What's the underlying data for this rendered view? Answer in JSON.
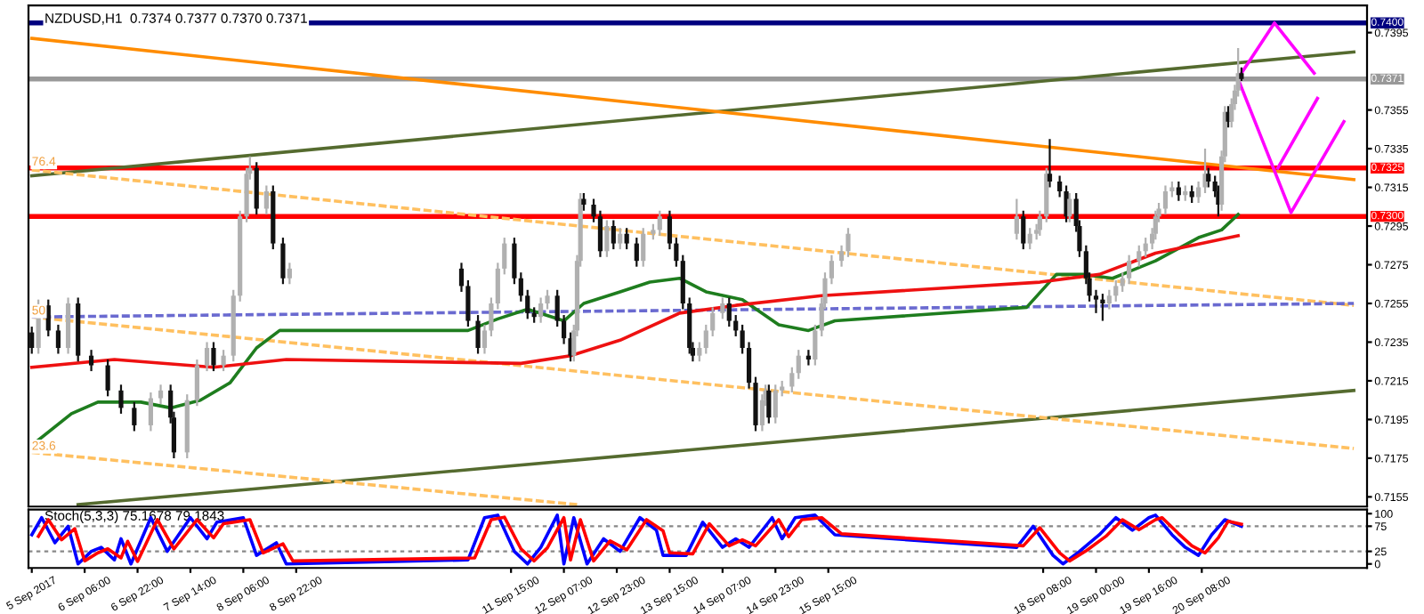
{
  "chart_data": [
    {
      "type": "candlestick",
      "title": "NZDUSD,H1  0.7374 0.7377 0.7370 0.7371",
      "x": [
        "2017-09-05T14:00",
        "2017-09-05T16:00",
        "2017-09-05T19:00",
        "2017-09-05T22:00",
        "2017-09-06T01:00",
        "2017-09-06T04:00",
        "2017-09-06T08:00",
        "2017-09-06T13:00",
        "2017-09-06T17:00",
        "2017-09-06T21:00",
        "2017-09-07T02:00",
        "2017-09-07T05:00",
        "2017-09-07T08:00",
        "2017-09-07T09:00",
        "2017-09-07T13:00",
        "2017-09-07T16:00",
        "2017-09-07T19:00",
        "2017-09-07T21:00",
        "2017-09-08T00:00",
        "2017-09-08T03:00",
        "2017-09-08T05:00",
        "2017-09-08T07:00",
        "2017-09-08T08:00",
        "2017-09-08T10:00",
        "2017-09-08T13:00",
        "2017-09-08T15:00",
        "2017-09-08T18:00",
        "2017-09-08T20:00",
        "2017-09-11T00:00",
        "2017-09-11T02:00",
        "2017-09-11T05:00",
        "2017-09-11T07:00",
        "2017-09-11T09:00",
        "2017-09-11T11:00",
        "2017-09-11T13:00",
        "2017-09-11T16:00",
        "2017-09-11T18:00",
        "2017-09-11T20:00",
        "2017-09-11T22:00",
        "2017-09-12T00:00",
        "2017-09-12T02:00",
        "2017-09-12T05:00",
        "2017-09-12T07:00",
        "2017-09-12T09:00",
        "2017-09-12T10:00",
        "2017-09-12T11:00",
        "2017-09-12T12:00",
        "2017-09-12T13:00",
        "2017-09-12T16:00",
        "2017-09-12T18:00",
        "2017-09-12T20:00",
        "2017-09-12T22:00",
        "2017-09-13T00:00",
        "2017-09-13T02:00",
        "2017-09-13T05:00",
        "2017-09-13T07:00",
        "2017-09-13T10:00",
        "2017-09-13T12:00",
        "2017-09-13T15:00",
        "2017-09-13T17:00",
        "2017-09-13T19:00",
        "2017-09-13T21:00",
        "2017-09-13T22:00",
        "2017-09-14T00:00",
        "2017-09-14T02:00",
        "2017-09-14T04:00",
        "2017-09-14T07:00",
        "2017-09-14T09:00",
        "2017-09-14T11:00",
        "2017-09-14T13:00",
        "2017-09-14T15:00",
        "2017-09-14T17:00",
        "2017-09-14T19:00",
        "2017-09-14T20:00",
        "2017-09-14T21:00",
        "2017-09-14T23:00",
        "2017-09-15T01:00",
        "2017-09-15T04:00",
        "2017-09-15T06:00",
        "2017-09-15T09:00",
        "2017-09-15T11:00",
        "2017-09-15T13:00",
        "2017-09-15T14:00",
        "2017-09-15T16:00",
        "2017-09-15T19:00",
        "2017-09-15T21:00",
        "2017-09-18T00:00",
        "2017-09-18T02:00",
        "2017-09-18T04:00",
        "2017-09-18T06:00",
        "2017-09-18T07:00",
        "2017-09-18T09:00",
        "2017-09-18T10:00",
        "2017-09-18T13:00",
        "2017-09-18T15:00",
        "2017-09-18T16:00",
        "2017-09-18T18:00",
        "2017-09-18T19:00",
        "2017-09-18T21:00",
        "2017-09-18T22:00",
        "2017-09-19T00:00",
        "2017-09-19T02:00",
        "2017-09-19T04:00",
        "2017-09-19T06:00",
        "2017-09-19T08:00",
        "2017-09-19T10:00",
        "2017-09-19T13:00",
        "2017-09-19T15:00",
        "2017-09-19T17:00",
        "2017-09-19T18:00",
        "2017-09-19T19:00",
        "2017-09-19T21:00",
        "2017-09-19T23:00",
        "2017-09-20T01:00",
        "2017-09-20T03:00",
        "2017-09-20T05:00",
        "2017-09-20T07:00",
        "2017-09-20T09:00",
        "2017-09-20T10:00",
        "2017-09-20T12:00",
        "2017-09-20T13:00",
        "2017-09-20T14:00",
        "2017-09-20T15:00",
        "2017-09-20T16:00",
        "2017-09-20T17:00",
        "2017-09-20T18:00",
        "2017-09-20T19:00",
        "2017-09-20T20:00"
      ],
      "ohlc": [
        [
          0.724,
          0.7243,
          0.7229,
          0.7232
        ],
        [
          0.7232,
          0.7257,
          0.7229,
          0.7254
        ],
        [
          0.7254,
          0.7257,
          0.7238,
          0.7241
        ],
        [
          0.7241,
          0.7244,
          0.7229,
          0.7232
        ],
        [
          0.7232,
          0.7258,
          0.7229,
          0.7255
        ],
        [
          0.7255,
          0.7258,
          0.7225,
          0.7228
        ],
        [
          0.7228,
          0.7231,
          0.722,
          0.7223
        ],
        [
          0.7223,
          0.7226,
          0.7207,
          0.721
        ],
        [
          0.721,
          0.7213,
          0.7198,
          0.7201
        ],
        [
          0.7201,
          0.7204,
          0.7189,
          0.7192
        ],
        [
          0.7192,
          0.7209,
          0.7189,
          0.7206
        ],
        [
          0.7206,
          0.7213,
          0.7203,
          0.721
        ],
        [
          0.721,
          0.7213,
          0.7193,
          0.7196
        ],
        [
          0.7196,
          0.7199,
          0.7175,
          0.7178
        ],
        [
          0.7178,
          0.7208,
          0.7175,
          0.7205
        ],
        [
          0.7205,
          0.7226,
          0.7202,
          0.7223
        ],
        [
          0.7223,
          0.7235,
          0.722,
          0.7232
        ],
        [
          0.7232,
          0.7235,
          0.722,
          0.7223
        ],
        [
          0.7223,
          0.7231,
          0.722,
          0.7228
        ],
        [
          0.7228,
          0.7262,
          0.7225,
          0.7259
        ],
        [
          0.7259,
          0.7303,
          0.7256,
          0.73
        ],
        [
          0.73,
          0.7325,
          0.7297,
          0.7322
        ],
        [
          0.7322,
          0.7331,
          0.7319,
          0.7325
        ],
        [
          0.7325,
          0.7328,
          0.7301,
          0.7304
        ],
        [
          0.7304,
          0.7316,
          0.7301,
          0.7313
        ],
        [
          0.7313,
          0.7316,
          0.7283,
          0.7286
        ],
        [
          0.7286,
          0.7289,
          0.7265,
          0.7268
        ],
        [
          0.7268,
          0.7276,
          0.7265,
          0.7273
        ],
        [
          0.7273,
          0.7276,
          0.7261,
          0.7264
        ],
        [
          0.7264,
          0.7267,
          0.7243,
          0.7246
        ],
        [
          0.7246,
          0.7249,
          0.7229,
          0.7232
        ],
        [
          0.7232,
          0.7244,
          0.7229,
          0.7241
        ],
        [
          0.7241,
          0.7258,
          0.7238,
          0.7255
        ],
        [
          0.7255,
          0.7276,
          0.7252,
          0.7273
        ],
        [
          0.7273,
          0.7289,
          0.727,
          0.7286
        ],
        [
          0.7286,
          0.7289,
          0.7265,
          0.7268
        ],
        [
          0.7268,
          0.7271,
          0.7256,
          0.7259
        ],
        [
          0.7259,
          0.7262,
          0.7247,
          0.725
        ],
        [
          0.725,
          0.7253,
          0.7245,
          0.7248
        ],
        [
          0.7248,
          0.7258,
          0.7245,
          0.7255
        ],
        [
          0.7255,
          0.7262,
          0.7252,
          0.7259
        ],
        [
          0.7259,
          0.7262,
          0.7243,
          0.7246
        ],
        [
          0.7246,
          0.7249,
          0.7234,
          0.7237
        ],
        [
          0.7237,
          0.724,
          0.7225,
          0.7228
        ],
        [
          0.7228,
          0.7244,
          0.7225,
          0.7241
        ],
        [
          0.7241,
          0.728,
          0.7238,
          0.7277
        ],
        [
          0.7277,
          0.7312,
          0.7274,
          0.7309
        ],
        [
          0.7309,
          0.7312,
          0.7303,
          0.7306
        ],
        [
          0.7306,
          0.7309,
          0.7297,
          0.73
        ],
        [
          0.73,
          0.7303,
          0.7279,
          0.7282
        ],
        [
          0.7282,
          0.7298,
          0.7279,
          0.7295
        ],
        [
          0.7295,
          0.7298,
          0.7283,
          0.7286
        ],
        [
          0.7286,
          0.7294,
          0.7283,
          0.7291
        ],
        [
          0.7291,
          0.7294,
          0.7283,
          0.7286
        ],
        [
          0.7286,
          0.7289,
          0.7274,
          0.7277
        ],
        [
          0.7277,
          0.7294,
          0.7274,
          0.7291
        ],
        [
          0.7291,
          0.7296,
          0.7288,
          0.7293
        ],
        [
          0.7293,
          0.7303,
          0.729,
          0.73
        ],
        [
          0.73,
          0.7303,
          0.7283,
          0.7286
        ],
        [
          0.7286,
          0.7289,
          0.7274,
          0.7277
        ],
        [
          0.7277,
          0.728,
          0.7252,
          0.7255
        ],
        [
          0.7255,
          0.7258,
          0.7229,
          0.7232
        ],
        [
          0.7232,
          0.7235,
          0.7225,
          0.7228
        ],
        [
          0.7228,
          0.7235,
          0.7225,
          0.7232
        ],
        [
          0.7232,
          0.7244,
          0.7229,
          0.7241
        ],
        [
          0.7241,
          0.7253,
          0.7238,
          0.725
        ],
        [
          0.725,
          0.7258,
          0.7247,
          0.7255
        ],
        [
          0.7255,
          0.7258,
          0.7243,
          0.7246
        ],
        [
          0.7246,
          0.7249,
          0.7238,
          0.7241
        ],
        [
          0.7241,
          0.7244,
          0.7229,
          0.7232
        ],
        [
          0.7232,
          0.7235,
          0.7211,
          0.7214
        ],
        [
          0.7214,
          0.7217,
          0.7189,
          0.7192
        ],
        [
          0.7192,
          0.7208,
          0.7189,
          0.7205
        ],
        [
          0.7205,
          0.7213,
          0.7202,
          0.721
        ],
        [
          0.721,
          0.7213,
          0.7193,
          0.7196
        ],
        [
          0.7196,
          0.7213,
          0.7193,
          0.721
        ],
        [
          0.721,
          0.7215,
          0.7207,
          0.7212
        ],
        [
          0.7212,
          0.7222,
          0.7209,
          0.7219
        ],
        [
          0.7219,
          0.7231,
          0.7216,
          0.7228
        ],
        [
          0.7228,
          0.7231,
          0.7223,
          0.7226
        ],
        [
          0.7226,
          0.7244,
          0.7223,
          0.7241
        ],
        [
          0.7241,
          0.7258,
          0.7238,
          0.7255
        ],
        [
          0.7255,
          0.7271,
          0.7252,
          0.7268
        ],
        [
          0.7268,
          0.728,
          0.7265,
          0.7277
        ],
        [
          0.7277,
          0.7285,
          0.7274,
          0.7282
        ],
        [
          0.7282,
          0.7294,
          0.7279,
          0.7291
        ],
        [
          0.7291,
          0.7309,
          0.7288,
          0.73
        ],
        [
          0.73,
          0.7303,
          0.7283,
          0.7286
        ],
        [
          0.7286,
          0.7294,
          0.7283,
          0.7291
        ],
        [
          0.7291,
          0.7296,
          0.7288,
          0.7293
        ],
        [
          0.7293,
          0.7303,
          0.729,
          0.73
        ],
        [
          0.73,
          0.7325,
          0.7297,
          0.7322
        ],
        [
          0.7322,
          0.734,
          0.7315,
          0.7318
        ],
        [
          0.7318,
          0.7321,
          0.731,
          0.7313
        ],
        [
          0.7313,
          0.7316,
          0.7297,
          0.73
        ],
        [
          0.73,
          0.7312,
          0.7297,
          0.7309
        ],
        [
          0.7309,
          0.7312,
          0.7292,
          0.7295
        ],
        [
          0.7295,
          0.7298,
          0.7279,
          0.7282
        ],
        [
          0.7282,
          0.7285,
          0.7265,
          0.7268
        ],
        [
          0.7268,
          0.7271,
          0.7256,
          0.7259
        ],
        [
          0.7259,
          0.7262,
          0.725,
          0.7257
        ],
        [
          0.7257,
          0.726,
          0.7246,
          0.7255
        ],
        [
          0.7255,
          0.7262,
          0.7252,
          0.7259
        ],
        [
          0.7259,
          0.7267,
          0.7256,
          0.7264
        ],
        [
          0.7264,
          0.7271,
          0.7261,
          0.7268
        ],
        [
          0.7268,
          0.728,
          0.7265,
          0.7277
        ],
        [
          0.7277,
          0.7285,
          0.7274,
          0.7282
        ],
        [
          0.7282,
          0.7289,
          0.7279,
          0.7286
        ],
        [
          0.7286,
          0.7294,
          0.7283,
          0.7291
        ],
        [
          0.7291,
          0.7303,
          0.7288,
          0.73
        ],
        [
          0.73,
          0.7307,
          0.7297,
          0.7304
        ],
        [
          0.7304,
          0.7316,
          0.7301,
          0.7313
        ],
        [
          0.7313,
          0.7318,
          0.731,
          0.7315
        ],
        [
          0.7315,
          0.7318,
          0.7308,
          0.7311
        ],
        [
          0.7311,
          0.7316,
          0.7308,
          0.7313
        ],
        [
          0.7313,
          0.7316,
          0.7307,
          0.731
        ],
        [
          0.731,
          0.7318,
          0.7307,
          0.7315
        ],
        [
          0.7315,
          0.7335,
          0.7312,
          0.7322
        ],
        [
          0.7322,
          0.7325,
          0.7315,
          0.7318
        ],
        [
          0.7318,
          0.7321,
          0.731,
          0.7313
        ],
        [
          0.7313,
          0.7316,
          0.73,
          0.7306
        ],
        [
          0.7306,
          0.7334,
          0.7303,
          0.7331
        ],
        [
          0.7331,
          0.7357,
          0.7328,
          0.7354
        ],
        [
          0.7354,
          0.7357,
          0.7346,
          0.7349
        ],
        [
          0.7349,
          0.7361,
          0.7346,
          0.7358
        ],
        [
          0.7358,
          0.7368,
          0.7355,
          0.7365
        ],
        [
          0.7365,
          0.7387,
          0.7362,
          0.7374
        ],
        [
          0.7374,
          0.7377,
          0.737,
          0.7371
        ]
      ],
      "series": [
        {
          "type": "line",
          "color": "#556b2f",
          "x": [
            "2017-09-05T14:00",
            "2017-09-22T06:00"
          ],
          "values": [
            0.7321,
            0.7385
          ]
        },
        {
          "type": "line",
          "color": "#556b2f",
          "x": [
            "2017-09-06T04:00",
            "2017-09-22T06:00"
          ],
          "values": [
            0.7151,
            0.721
          ]
        },
        {
          "type": "line",
          "color": "#ff8c00",
          "x": [
            "2017-09-05T14:00",
            "2017-09-22T06:00"
          ],
          "values": [
            0.7392,
            0.7319
          ]
        },
        {
          "type": "line",
          "color": "#ffc060",
          "line_style": "dashed",
          "x": [
            "2017-09-05T14:00",
            "2017-09-22T06:00"
          ],
          "values": [
            0.7324,
            0.7254
          ]
        },
        {
          "type": "line",
          "color": "#ffc060",
          "line_style": "dashed",
          "x": [
            "2017-09-05T14:00",
            "2017-09-22T06:00"
          ],
          "values": [
            0.7248,
            0.718
          ]
        },
        {
          "type": "line",
          "color": "#ffc060",
          "line_style": "dashed",
          "x": [
            "2017-09-05T14:00",
            "2017-09-12T11:00"
          ],
          "values": [
            0.7178,
            0.7151
          ]
        },
        {
          "type": "line",
          "color": "#6a6ad0",
          "line_style": "dashed",
          "x": [
            "2017-09-05T14:00",
            "2017-09-22T06:00"
          ],
          "values": [
            0.7248,
            0.7255
          ]
        },
        {
          "type": "line",
          "color": "#1e7d1e",
          "x": [
            "2017-09-05T15:00",
            "2017-09-06T02:00",
            "2017-09-06T10:00",
            "2017-09-06T23:00",
            "2017-09-07T08:00",
            "2017-09-07T17:00",
            "2017-09-08T02:00",
            "2017-09-08T10:00",
            "2017-09-08T17:00",
            "2017-09-11T02:00",
            "2017-09-11T11:00",
            "2017-09-11T20:00",
            "2017-09-12T07:00",
            "2017-09-12T13:00",
            "2017-09-13T00:00",
            "2017-09-13T09:00",
            "2017-09-13T18:00",
            "2017-09-14T02:00",
            "2017-09-14T13:00",
            "2017-09-15T00:00",
            "2017-09-15T09:00",
            "2017-09-15T17:00",
            "2017-09-18T03:00",
            "2017-09-18T12:00",
            "2017-09-18T20:00",
            "2017-09-19T05:00",
            "2017-09-19T18:00",
            "2017-09-20T07:00",
            "2017-09-20T14:00",
            "2017-09-20T19:00"
          ],
          "values": [
            0.7183,
            0.7198,
            0.7204,
            0.7204,
            0.7201,
            0.7205,
            0.7214,
            0.7232,
            0.7241,
            0.7241,
            0.7247,
            0.7252,
            0.7246,
            0.7255,
            0.7261,
            0.7266,
            0.7268,
            0.7261,
            0.7257,
            0.7244,
            0.7241,
            0.7246,
            0.7253,
            0.727,
            0.727,
            0.7268,
            0.7277,
            0.7289,
            0.7293,
            0.7301
          ]
        },
        {
          "type": "line",
          "color": "#ee1111",
          "x": [
            "2017-09-05T14:00",
            "2017-09-06T15:00",
            "2017-09-07T21:00",
            "2017-09-08T19:00",
            "2017-09-11T18:00",
            "2017-09-12T09:00",
            "2017-09-13T00:00",
            "2017-09-13T18:00",
            "2017-09-14T11:00",
            "2017-09-15T13:00",
            "2017-09-18T07:00",
            "2017-09-19T01:00",
            "2017-09-19T18:00",
            "2017-09-20T19:00"
          ],
          "values": [
            0.7222,
            0.7226,
            0.7222,
            0.7226,
            0.7224,
            0.7228,
            0.7236,
            0.725,
            0.7254,
            0.7259,
            0.7266,
            0.727,
            0.7281,
            0.729
          ]
        },
        {
          "type": "line",
          "color": "#ff00ff",
          "x": [
            "2017-09-20T20:00",
            "2017-09-21T06:00",
            "2017-09-21T18:00"
          ],
          "values": [
            0.7374,
            0.74,
            0.7374
          ]
        },
        {
          "type": "line",
          "color": "#ff00ff",
          "x": [
            "2017-09-20T19:00",
            "2017-09-21T11:00",
            "2017-09-22T03:00"
          ],
          "values": [
            0.7371,
            0.7302,
            0.7349
          ]
        },
        {
          "type": "line",
          "color": "#ff00ff",
          "x": [
            "2017-09-21T07:00",
            "2017-09-21T19:00"
          ],
          "values": [
            0.7325,
            0.7361
          ]
        }
      ],
      "ref_lines": [
        {
          "axis": "y",
          "value": 0.74,
          "label": "0.7400",
          "color": "#000080"
        },
        {
          "axis": "y",
          "value": 0.7371,
          "label": "0.7371",
          "color": "#999999"
        },
        {
          "axis": "y",
          "value": 0.7325,
          "label": "0.7325",
          "color": "#ff0000"
        },
        {
          "axis": "y",
          "value": 0.73,
          "label": "0.7300",
          "color": "#ff0000"
        }
      ],
      "annotations": [
        {
          "text": "76.4",
          "x": "2017-09-05T14:00",
          "y": 0.7325
        },
        {
          "text": "50",
          "x": "2017-09-05T14:00",
          "y": 0.7248
        },
        {
          "text": "23.6",
          "x": "2017-09-05T14:00",
          "y": 0.7178
        }
      ],
      "xlim": [
        "2017-09-05T13:00",
        "2017-09-22T10:00"
      ],
      "ylim": [
        0.715,
        0.7409
      ],
      "yticks": [
        0.7155,
        0.7175,
        0.7195,
        0.7215,
        0.7235,
        0.7255,
        0.7275,
        0.7295,
        0.7315,
        0.7335,
        0.7355,
        0.7395
      ],
      "tick_labels": "y"
    },
    {
      "type": "line",
      "title": "Stoch(5,3,3) 75.1678 79.1843",
      "series": [
        {
          "color": "#0000ff",
          "x": [
            "2017-09-05T14:00",
            "2017-09-05T17:00",
            "2017-09-05T21:00",
            "2017-09-06T01:00",
            "2017-09-06T04:00",
            "2017-09-06T08:00",
            "2017-09-06T11:00",
            "2017-09-06T15:00",
            "2017-09-06T17:00",
            "2017-09-06T20:00",
            "2017-09-07T02:00",
            "2017-09-07T07:00",
            "2017-09-07T14:00",
            "2017-09-07T19:00",
            "2017-09-07T22:00",
            "2017-09-08T06:00",
            "2017-09-08T10:00",
            "2017-09-08T16:00",
            "2017-09-08T19:00",
            "2017-09-11T02:00",
            "2017-09-11T07:00",
            "2017-09-11T11:00",
            "2017-09-11T16:00",
            "2017-09-11T20:00",
            "2017-09-12T00:00",
            "2017-09-12T05:00",
            "2017-09-12T07:00",
            "2017-09-12T10:00",
            "2017-09-12T14:00",
            "2017-09-12T19:00",
            "2017-09-13T00:00",
            "2017-09-13T06:00",
            "2017-09-13T11:00",
            "2017-09-13T13:00",
            "2017-09-13T20:00",
            "2017-09-14T01:00",
            "2017-09-14T07:00",
            "2017-09-14T11:00",
            "2017-09-14T15:00",
            "2017-09-14T22:00",
            "2017-09-15T01:00",
            "2017-09-15T05:00",
            "2017-09-15T11:00",
            "2017-09-15T17:00",
            "2017-09-18T00:00",
            "2017-09-18T05:00",
            "2017-09-18T11:00",
            "2017-09-18T14:00",
            "2017-09-18T19:00",
            "2017-09-19T01:00",
            "2017-09-19T06:00",
            "2017-09-19T11:00",
            "2017-09-19T16:00",
            "2017-09-19T18:00",
            "2017-09-19T23:00",
            "2017-09-20T03:00",
            "2017-09-20T07:00",
            "2017-09-20T11:00",
            "2017-09-20T15:00",
            "2017-09-20T20:00"
          ],
          "values": [
            58,
            92,
            42,
            75,
            0,
            25,
            33,
            8,
            50,
            0,
            92,
            25,
            92,
            50,
            83,
            92,
            17,
            42,
            0,
            8,
            92,
            97,
            25,
            0,
            33,
            97,
            0,
            92,
            0,
            50,
            25,
            92,
            67,
            17,
            17,
            83,
            33,
            50,
            33,
            92,
            50,
            92,
            97,
            58,
            33,
            75,
            17,
            0,
            25,
            58,
            92,
            67,
            92,
            97,
            58,
            33,
            17,
            58,
            88,
            75
          ]
        },
        {
          "color": "#ff0000",
          "x": [
            "2017-09-05T16:00",
            "2017-09-05T19:00",
            "2017-09-05T23:00",
            "2017-09-06T03:00",
            "2017-09-06T06:00",
            "2017-09-06T10:00",
            "2017-09-06T13:00",
            "2017-09-06T17:00",
            "2017-09-06T19:00",
            "2017-09-06T22:00",
            "2017-09-07T04:00",
            "2017-09-07T09:00",
            "2017-09-07T16:00",
            "2017-09-07T21:00",
            "2017-09-08T00:00",
            "2017-09-08T08:00",
            "2017-09-08T12:00",
            "2017-09-08T18:00",
            "2017-09-08T21:00",
            "2017-09-11T04:00",
            "2017-09-11T09:00",
            "2017-09-11T13:00",
            "2017-09-11T18:00",
            "2017-09-11T22:00",
            "2017-09-12T02:00",
            "2017-09-12T07:00",
            "2017-09-12T09:00",
            "2017-09-12T12:00",
            "2017-09-12T16:00",
            "2017-09-12T21:00",
            "2017-09-13T02:00",
            "2017-09-13T08:00",
            "2017-09-13T13:00",
            "2017-09-13T15:00",
            "2017-09-13T22:00",
            "2017-09-14T03:00",
            "2017-09-14T09:00",
            "2017-09-14T13:00",
            "2017-09-14T17:00",
            "2017-09-15T00:00",
            "2017-09-15T03:00",
            "2017-09-15T07:00",
            "2017-09-15T13:00",
            "2017-09-15T19:00",
            "2017-09-18T02:00",
            "2017-09-18T07:00",
            "2017-09-18T13:00",
            "2017-09-18T16:00",
            "2017-09-18T21:00",
            "2017-09-19T03:00",
            "2017-09-19T08:00",
            "2017-09-19T13:00",
            "2017-09-19T18:00",
            "2017-09-19T20:00",
            "2017-09-20T01:00",
            "2017-09-20T05:00",
            "2017-09-20T09:00",
            "2017-09-20T13:00",
            "2017-09-20T16:00",
            "2017-09-20T20:00"
          ],
          "values": [
            55,
            88,
            48,
            70,
            6,
            22,
            30,
            12,
            45,
            5,
            88,
            30,
            88,
            52,
            80,
            88,
            22,
            40,
            6,
            12,
            88,
            93,
            30,
            6,
            32,
            92,
            8,
            88,
            6,
            46,
            28,
            88,
            66,
            22,
            20,
            80,
            36,
            48,
            36,
            88,
            54,
            88,
            92,
            60,
            36,
            72,
            22,
            6,
            26,
            55,
            88,
            68,
            88,
            92,
            60,
            36,
            22,
            52,
            85,
            79
          ]
        }
      ],
      "ref_lines": [
        {
          "axis": "y",
          "value": 75,
          "line_style": "dotted",
          "color": "#888888"
        },
        {
          "axis": "y",
          "value": 25,
          "line_style": "dotted",
          "color": "#888888"
        }
      ],
      "xlim": [
        "2017-09-05T13:00",
        "2017-09-22T10:00"
      ],
      "ylim": [
        -8,
        108
      ],
      "yticks": [
        0,
        25,
        75,
        100
      ],
      "xticks": [
        {
          "value": "2017-09-05T14:00",
          "label": "5 Sep 2017"
        },
        {
          "value": "2017-09-06T06:00",
          "label": "6 Sep 06:00"
        },
        {
          "value": "2017-09-06T22:00",
          "label": "6 Sep 22:00"
        },
        {
          "value": "2017-09-07T14:00",
          "label": "7 Sep 14:00"
        },
        {
          "value": "2017-09-08T06:00",
          "label": "8 Sep 06:00"
        },
        {
          "value": "2017-09-08T22:00",
          "label": "8 Sep 22:00"
        },
        {
          "value": "2017-09-11T15:00",
          "label": "11 Sep 15:00"
        },
        {
          "value": "2017-09-12T07:00",
          "label": "12 Sep 07:00"
        },
        {
          "value": "2017-09-12T23:00",
          "label": "12 Sep 23:00"
        },
        {
          "value": "2017-09-13T15:00",
          "label": "13 Sep 15:00"
        },
        {
          "value": "2017-09-14T07:00",
          "label": "14 Sep 07:00"
        },
        {
          "value": "2017-09-14T23:00",
          "label": "14 Sep 23:00"
        },
        {
          "value": "2017-09-15T15:00",
          "label": "15 Sep 15:00"
        },
        {
          "value": "2017-09-18T08:00",
          "label": "18 Sep 08:00"
        },
        {
          "value": "2017-09-19T00:00",
          "label": "19 Sep 00:00"
        },
        {
          "value": "2017-09-19T16:00",
          "label": "19 Sep 16:00"
        },
        {
          "value": "2017-09-20T08:00",
          "label": "20 Sep 08:00"
        }
      ]
    }
  ]
}
